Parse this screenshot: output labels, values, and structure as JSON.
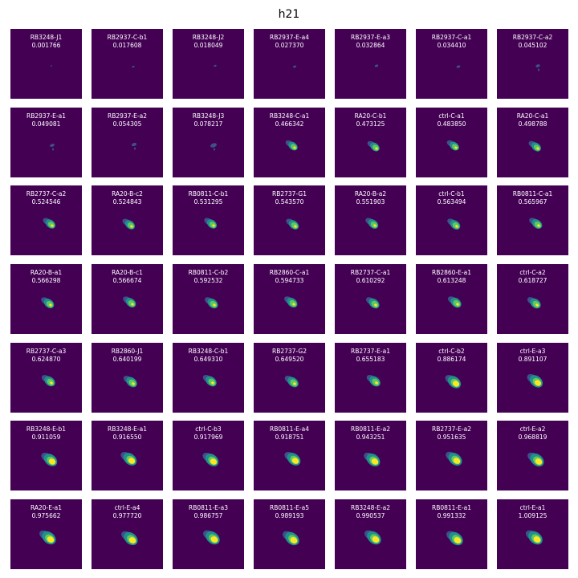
{
  "title": "h21",
  "colormap": {
    "background": "#440154",
    "low": "#3b528b",
    "mid": "#21908d",
    "high": "#5ec962",
    "peak": "#fde725"
  },
  "panels": [
    {
      "name": "RB3248-J1",
      "value": "0.001766"
    },
    {
      "name": "RB2937-C-b1",
      "value": "0.017608"
    },
    {
      "name": "RB3248-J2",
      "value": "0.018049"
    },
    {
      "name": "RB2937-E-a4",
      "value": "0.027370"
    },
    {
      "name": "RB2937-E-a3",
      "value": "0.032864"
    },
    {
      "name": "RB2937-C-a1",
      "value": "0.034410"
    },
    {
      "name": "RB2937-C-a2",
      "value": "0.045102"
    },
    {
      "name": "RB2937-E-a1",
      "value": "0.049081"
    },
    {
      "name": "RB2937-E-a2",
      "value": "0.054305"
    },
    {
      "name": "RB3248-J3",
      "value": "0.078217"
    },
    {
      "name": "RB3248-C-a1",
      "value": "0.466342"
    },
    {
      "name": "RA20-C-b1",
      "value": "0.473125"
    },
    {
      "name": "ctrl-C-a1",
      "value": "0.483850"
    },
    {
      "name": "RA20-C-a1",
      "value": "0.498788"
    },
    {
      "name": "RB2737-C-a2",
      "value": "0.524546"
    },
    {
      "name": "RA20-B-c2",
      "value": "0.524843"
    },
    {
      "name": "RB0811-C-b1",
      "value": "0.531295"
    },
    {
      "name": "RB2737-G1",
      "value": "0.543570"
    },
    {
      "name": "RA20-B-a2",
      "value": "0.551903"
    },
    {
      "name": "ctrl-C-b1",
      "value": "0.563494"
    },
    {
      "name": "RB0811-C-a1",
      "value": "0.565967"
    },
    {
      "name": "RA20-B-a1",
      "value": "0.566298"
    },
    {
      "name": "RA20-B-c1",
      "value": "0.566674"
    },
    {
      "name": "RB0811-C-b2",
      "value": "0.592532"
    },
    {
      "name": "RB2860-C-a1",
      "value": "0.594733"
    },
    {
      "name": "RB2737-C-a1",
      "value": "0.610292"
    },
    {
      "name": "RB2860-E-a1",
      "value": "0.613248"
    },
    {
      "name": "ctrl-C-a2",
      "value": "0.618727"
    },
    {
      "name": "RB2737-C-a3",
      "value": "0.624870"
    },
    {
      "name": "RB2860-J1",
      "value": "0.640199"
    },
    {
      "name": "RB3248-C-b1",
      "value": "0.649310"
    },
    {
      "name": "RB2737-G2",
      "value": "0.649520"
    },
    {
      "name": "RB2737-E-a1",
      "value": "0.655183"
    },
    {
      "name": "ctrl-C-b2",
      "value": "0.886174"
    },
    {
      "name": "ctrl-E-a3",
      "value": "0.891107"
    },
    {
      "name": "RB3248-E-b1",
      "value": "0.911059"
    },
    {
      "name": "RB3248-E-a1",
      "value": "0.916550"
    },
    {
      "name": "ctrl-C-b3",
      "value": "0.917969"
    },
    {
      "name": "RB0811-E-a4",
      "value": "0.918751"
    },
    {
      "name": "RB0811-E-a2",
      "value": "0.943251"
    },
    {
      "name": "RB2737-E-a2",
      "value": "0.951635"
    },
    {
      "name": "ctrl-E-a2",
      "value": "0.968819"
    },
    {
      "name": "RA20-E-a1",
      "value": "0.975662"
    },
    {
      "name": "ctrl-E-a4",
      "value": "0.977720"
    },
    {
      "name": "RB0811-E-a3",
      "value": "0.986757"
    },
    {
      "name": "RB0811-E-a5",
      "value": "0.989193"
    },
    {
      "name": "RB3248-E-a2",
      "value": "0.990537"
    },
    {
      "name": "RB0811-E-a1",
      "value": "0.991332"
    },
    {
      "name": "ctrl-E-a1",
      "value": "1.009125"
    }
  ]
}
